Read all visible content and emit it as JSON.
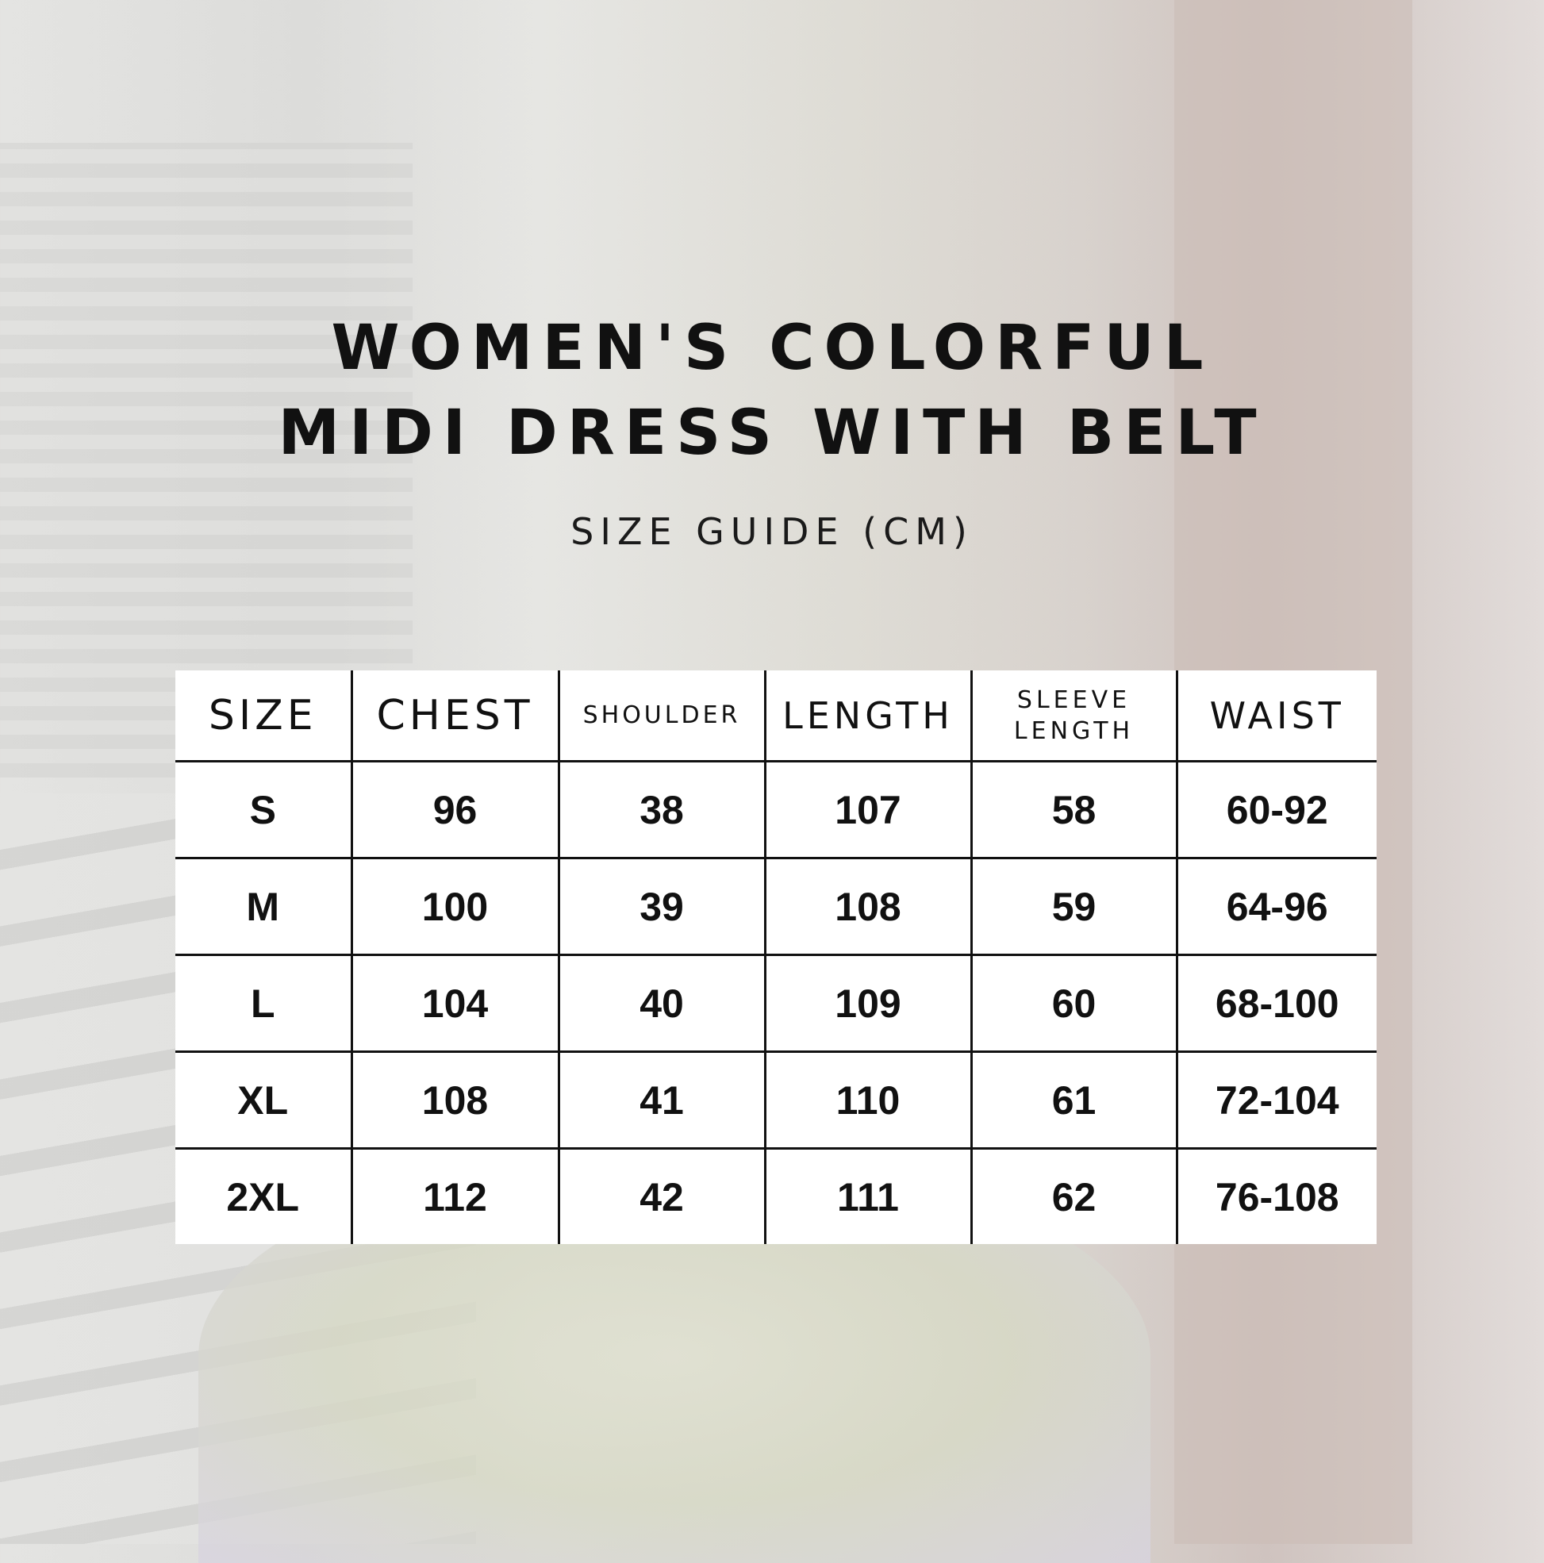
{
  "title_line1": "WOMEN'S COLORFUL",
  "title_line2": "MIDI DRESS WITH BELT",
  "subtitle": "SIZE GUIDE (CM)",
  "headers": [
    "SIZE",
    "CHEST",
    "SHOULDER",
    "LENGTH",
    "SLEEVE LENGTH",
    "WAIST"
  ],
  "header_sleeve": [
    "SLEEVE",
    "LENGTH"
  ],
  "rows": [
    [
      "S",
      "96",
      "38",
      "107",
      "58",
      "60-92"
    ],
    [
      "M",
      "100",
      "39",
      "108",
      "59",
      "64-96"
    ],
    [
      "L",
      "104",
      "40",
      "109",
      "60",
      "68-100"
    ],
    [
      "XL",
      "108",
      "41",
      "110",
      "61",
      "72-104"
    ],
    [
      "2XL",
      "112",
      "42",
      "111",
      "62",
      "76-108"
    ]
  ]
}
